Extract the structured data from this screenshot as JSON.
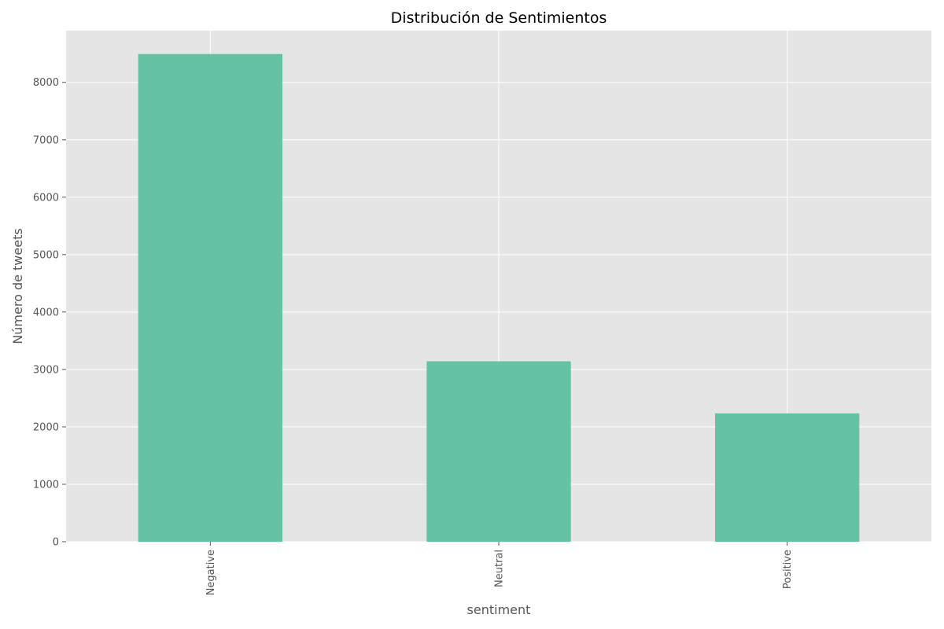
{
  "chart_data": {
    "type": "bar",
    "title": "Distribución de Sentimientos",
    "xlabel": "sentiment",
    "ylabel": "Número de tweets",
    "categories": [
      "Negative",
      "Neutral",
      "Positive"
    ],
    "values": [
      8493,
      3142,
      2236
    ],
    "ylim": [
      0,
      8900
    ],
    "yticks": [
      0,
      1000,
      2000,
      3000,
      4000,
      5000,
      6000,
      7000,
      8000
    ],
    "grid": true,
    "legend": "none",
    "colors": {
      "bar": "#66c2a5",
      "plot_background": "#e5e5e5",
      "grid": "#ffffff",
      "tick": "#555555"
    }
  }
}
